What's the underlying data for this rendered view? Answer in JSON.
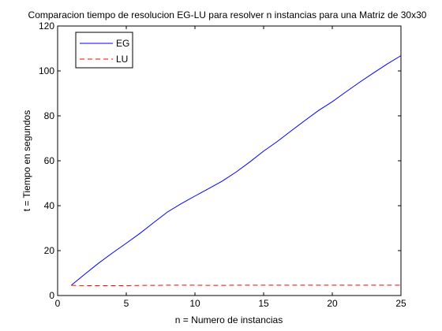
{
  "chart_data": {
    "type": "line",
    "title": "Comparacion tiempo de resolucion EG-LU para resolver n instancias para una Matriz de 30x30",
    "xlabel": "n = Numero de instancias",
    "ylabel": "t = Tiempo en segundos",
    "xlim": [
      0,
      25
    ],
    "ylim": [
      0,
      120
    ],
    "xticks": [
      0,
      5,
      10,
      15,
      20,
      25
    ],
    "yticks": [
      0,
      20,
      40,
      60,
      80,
      100,
      120
    ],
    "grid": false,
    "legend_position": "top-left",
    "x": [
      1,
      2,
      3,
      4,
      5,
      6,
      7,
      8,
      9,
      10,
      11,
      12,
      13,
      14,
      15,
      16,
      17,
      18,
      19,
      20,
      21,
      22,
      23,
      24,
      25
    ],
    "series": [
      {
        "name": "EG",
        "color": "#0000ff",
        "style": "solid",
        "values": [
          4.6,
          9.6,
          14.5,
          19.0,
          23.3,
          27.7,
          32.5,
          37.2,
          40.9,
          44.3,
          47.6,
          51.0,
          55.0,
          59.5,
          64.3,
          68.6,
          73.3,
          77.9,
          82.4,
          86.3,
          90.7,
          95.0,
          99.1,
          103.1,
          106.8
        ]
      },
      {
        "name": "LU",
        "color": "#ff0000",
        "style": "dashed",
        "values": [
          4.5,
          4.4,
          4.4,
          4.4,
          4.4,
          4.5,
          4.5,
          4.6,
          4.6,
          4.6,
          4.5,
          4.5,
          4.6,
          4.6,
          4.6,
          4.6,
          4.6,
          4.6,
          4.6,
          4.6,
          4.6,
          4.6,
          4.6,
          4.6,
          4.6
        ]
      }
    ]
  }
}
